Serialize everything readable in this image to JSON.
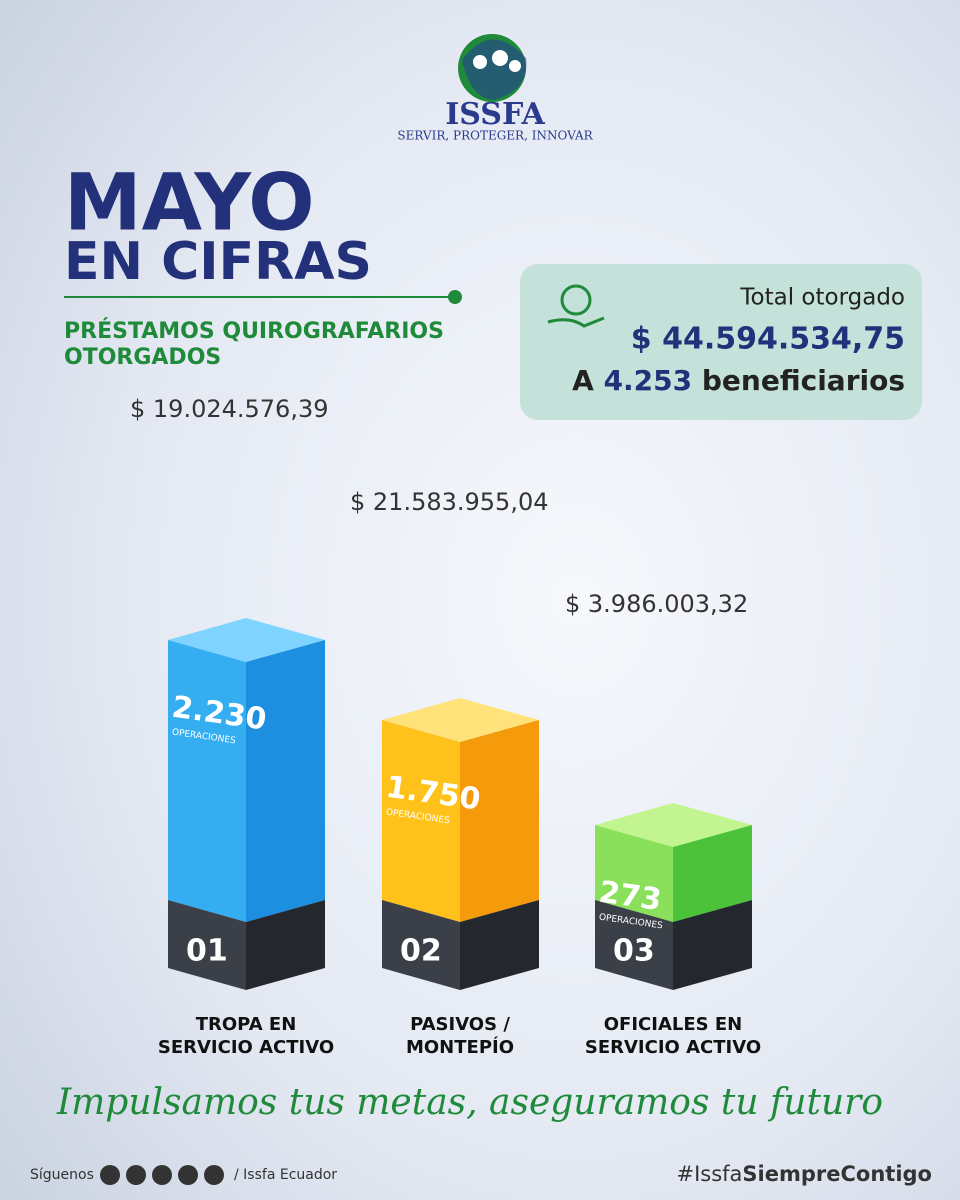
{
  "header": {
    "logo_name": "ISSFA",
    "tagline": "SERVIR, PROTEGER, INNOVAR"
  },
  "title": {
    "line1": "MAYO",
    "line2": "EN CIFRAS"
  },
  "subtitle": {
    "line1": "PRÉSTAMOS QUIROGRAFARIOS",
    "line2": "OTORGADOS"
  },
  "summary": {
    "label": "Total otorgado",
    "amount": "$ 44.594.534,75",
    "prefix": "A",
    "count": "4.253",
    "suffix": "beneficiarios"
  },
  "groups": [
    {
      "amount": "$ 19.024.576,39",
      "operations": "2.230",
      "operations_label": "OPERACIONES",
      "number": "01",
      "label_line1": "TROPA EN",
      "label_line2": "SERVICIO ACTIVO"
    },
    {
      "amount": "$ 21.583.955,04",
      "operations": "1.750",
      "operations_label": "OPERACIONES",
      "number": "02",
      "label_line1": "PASIVOS /",
      "label_line2": "MONTEPÍO"
    },
    {
      "amount": "$ 3.986.003,32",
      "operations": "273",
      "operations_label": "OPERACIONES",
      "number": "03",
      "label_line1": "OFICIALES EN",
      "label_line2": "SERVICIO ACTIVO"
    }
  ],
  "slogan": "Impulsamos tus metas, aseguramos tu futuro",
  "footer": {
    "follow": "Síguenos",
    "handle": "/ Issfa Ecuador",
    "hashtag_prefix": "#Issfa",
    "hashtag_bold": "SiempreContigo"
  }
}
